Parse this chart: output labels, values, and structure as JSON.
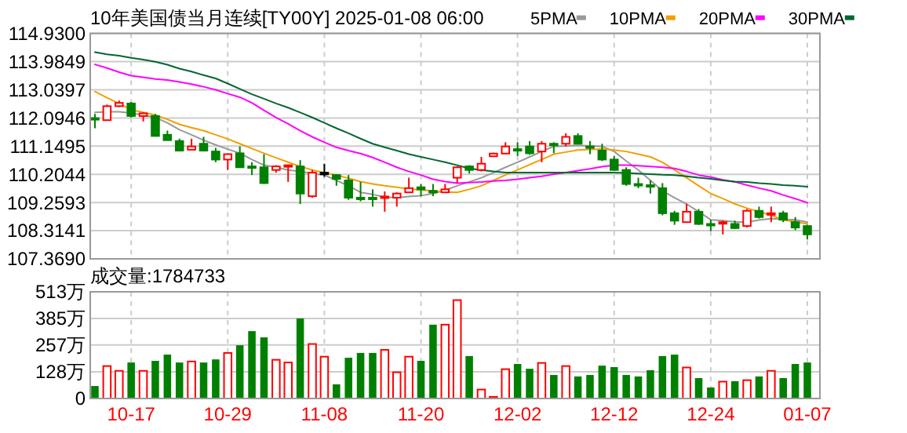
{
  "chart_data": [
    {
      "type": "candlestick",
      "title": "10年美国债当月连续[TY00Y] 2025-01-08 06:00",
      "categories": [
        null,
        null,
        null,
        null,
        null,
        null,
        null,
        null,
        null,
        null,
        null,
        null,
        null,
        null,
        null,
        null,
        null,
        null,
        null,
        null,
        null,
        null,
        null,
        null,
        null,
        null,
        null,
        null,
        null,
        null,
        null,
        null,
        null,
        null,
        null,
        null,
        null,
        null,
        null,
        null,
        null,
        null,
        null,
        null,
        null,
        null,
        null,
        null,
        null,
        null,
        null,
        null,
        null,
        null,
        null,
        null,
        null,
        null,
        null,
        null
      ],
      "ohlc": [
        [
          112.09,
          112.23,
          111.75,
          112.04
        ],
        [
          112.02,
          112.54,
          112.02,
          112.49
        ],
        [
          112.49,
          112.68,
          112.46,
          112.6
        ],
        [
          112.58,
          112.63,
          112.11,
          112.16
        ],
        [
          112.16,
          112.28,
          111.98,
          112.25
        ],
        [
          112.16,
          112.23,
          111.49,
          111.49
        ],
        [
          111.53,
          111.67,
          111.35,
          111.35
        ],
        [
          111.32,
          111.4,
          110.97,
          111.0
        ],
        [
          111.03,
          111.4,
          111.03,
          111.14
        ],
        [
          111.23,
          111.46,
          110.97,
          111.0
        ],
        [
          110.97,
          111.09,
          110.61,
          110.7
        ],
        [
          110.7,
          110.91,
          110.35,
          110.88
        ],
        [
          110.91,
          111.14,
          110.44,
          110.44
        ],
        [
          110.47,
          110.61,
          110.18,
          110.44
        ],
        [
          110.44,
          110.88,
          109.88,
          109.91
        ],
        [
          110.35,
          110.51,
          110.26,
          110.47
        ],
        [
          110.47,
          110.51,
          109.95,
          110.51
        ],
        [
          110.47,
          110.68,
          109.21,
          109.56
        ],
        [
          109.47,
          110.35,
          109.42,
          110.26
        ],
        [
          110.26,
          110.56,
          110.12,
          110.26
        ],
        [
          110.18,
          110.21,
          109.82,
          110.05
        ],
        [
          110.0,
          110.18,
          109.35,
          109.42
        ],
        [
          109.42,
          109.95,
          109.3,
          109.39
        ],
        [
          109.42,
          109.7,
          109.12,
          109.39
        ],
        [
          109.42,
          109.63,
          108.95,
          109.46
        ],
        [
          109.42,
          109.6,
          109.12,
          109.56
        ],
        [
          109.6,
          110.09,
          109.6,
          109.74
        ],
        [
          109.77,
          109.88,
          109.47,
          109.7
        ],
        [
          109.65,
          109.88,
          109.47,
          109.61
        ],
        [
          109.6,
          109.88,
          109.6,
          109.7
        ],
        [
          110.09,
          110.47,
          109.91,
          110.44
        ],
        [
          110.47,
          110.51,
          110.23,
          110.35
        ],
        [
          110.35,
          110.79,
          110.3,
          110.56
        ],
        [
          110.81,
          110.93,
          110.79,
          110.9
        ],
        [
          110.9,
          111.28,
          110.9,
          111.14
        ],
        [
          111.05,
          111.28,
          110.82,
          111.02
        ],
        [
          111.14,
          111.32,
          110.86,
          110.91
        ],
        [
          110.97,
          111.32,
          110.61,
          111.23
        ],
        [
          111.23,
          111.28,
          110.91,
          111.19
        ],
        [
          111.23,
          111.58,
          111.14,
          111.46
        ],
        [
          111.49,
          111.58,
          111.23,
          111.23
        ],
        [
          111.14,
          111.32,
          110.88,
          111.11
        ],
        [
          111.0,
          111.23,
          110.65,
          110.7
        ],
        [
          110.7,
          110.82,
          110.32,
          110.35
        ],
        [
          110.35,
          110.44,
          109.82,
          109.88
        ],
        [
          109.88,
          110.09,
          109.74,
          109.84
        ],
        [
          109.84,
          110.0,
          109.56,
          109.81
        ],
        [
          109.74,
          109.91,
          108.83,
          108.9
        ],
        [
          108.9,
          108.98,
          108.51,
          108.65
        ],
        [
          108.6,
          109.21,
          108.6,
          108.95
        ],
        [
          108.95,
          109.04,
          108.51,
          108.54
        ],
        [
          108.54,
          108.68,
          108.3,
          108.51
        ],
        [
          108.56,
          108.65,
          108.19,
          108.6
        ],
        [
          108.54,
          108.65,
          108.37,
          108.4
        ],
        [
          108.47,
          109.04,
          108.42,
          108.98
        ],
        [
          108.98,
          109.12,
          108.72,
          108.77
        ],
        [
          108.86,
          109.12,
          108.6,
          108.9
        ],
        [
          108.9,
          108.98,
          108.6,
          108.68
        ],
        [
          108.6,
          108.77,
          108.33,
          108.42
        ],
        [
          108.47,
          108.51,
          108.02,
          108.19
        ]
      ],
      "colors": [
        "#008000",
        "#ff0000",
        "#ff0000",
        "#008000",
        "#ff0000",
        "#008000",
        "#008000",
        "#008000",
        "#ff0000",
        "#008000",
        "#008000",
        "#ff0000",
        "#008000",
        "#008000",
        "#008000",
        "#ff0000",
        "#ff0000",
        "#008000",
        "#ff0000",
        "#000000",
        "#008000",
        "#008000",
        "#008000",
        "#008000",
        "#ff0000",
        "#ff0000",
        "#ff0000",
        "#008000",
        "#008000",
        "#ff0000",
        "#ff0000",
        "#008000",
        "#ff0000",
        "#ff0000",
        "#ff0000",
        "#008000",
        "#008000",
        "#ff0000",
        "#008000",
        "#ff0000",
        "#008000",
        "#008000",
        "#008000",
        "#008000",
        "#008000",
        "#008000",
        "#008000",
        "#008000",
        "#008000",
        "#ff0000",
        "#008000",
        "#008000",
        "#ff0000",
        "#008000",
        "#ff0000",
        "#008000",
        "#ff0000",
        "#008000",
        "#008000",
        "#008000"
      ],
      "series": [
        {
          "name": "5PMA",
          "type": "line",
          "color": "#999999",
          "values": [
            112.28,
            112.3,
            112.3,
            112.26,
            112.19,
            112.11,
            111.93,
            111.7,
            111.53,
            111.35,
            111.19,
            111.05,
            110.91,
            110.7,
            110.51,
            110.44,
            110.35,
            110.3,
            110.23,
            110.18,
            110.0,
            109.82,
            109.6,
            109.53,
            109.44,
            109.42,
            109.46,
            109.49,
            109.56,
            109.67,
            109.82,
            109.95,
            110.09,
            110.26,
            110.44,
            110.61,
            110.79,
            110.97,
            111.14,
            111.16,
            111.18,
            111.16,
            111.14,
            110.97,
            110.65,
            110.35,
            110.0,
            109.65,
            109.42,
            109.21,
            108.95,
            108.68,
            108.65,
            108.61,
            108.6,
            108.67,
            108.72,
            108.7,
            108.68,
            108.6
          ]
        },
        {
          "name": "10PMA",
          "type": "line",
          "color": "#f0a000",
          "values": [
            112.98,
            112.77,
            112.58,
            112.37,
            112.28,
            112.19,
            112.05,
            111.88,
            111.77,
            111.67,
            111.53,
            111.39,
            111.23,
            111.07,
            110.91,
            110.76,
            110.61,
            110.47,
            110.35,
            110.26,
            110.18,
            110.07,
            109.96,
            109.88,
            109.82,
            109.77,
            109.72,
            109.68,
            109.65,
            109.61,
            109.6,
            109.7,
            109.82,
            110.0,
            110.18,
            110.35,
            110.53,
            110.7,
            110.88,
            110.95,
            111.02,
            111.04,
            111.05,
            111.02,
            110.97,
            110.88,
            110.79,
            110.61,
            110.35,
            110.09,
            109.82,
            109.56,
            109.39,
            109.21,
            109.07,
            108.95,
            108.83,
            108.68,
            108.61,
            108.54
          ]
        },
        {
          "name": "20PMA",
          "type": "line",
          "color": "#ff00ff",
          "values": [
            113.89,
            113.77,
            113.63,
            113.51,
            113.46,
            113.4,
            113.37,
            113.3,
            113.23,
            113.14,
            113.04,
            112.91,
            112.79,
            112.6,
            112.35,
            112.11,
            111.9,
            111.67,
            111.46,
            111.28,
            111.11,
            111.0,
            110.9,
            110.77,
            110.61,
            110.44,
            110.3,
            110.18,
            110.04,
            109.96,
            109.91,
            109.93,
            109.95,
            109.98,
            110.0,
            110.04,
            110.09,
            110.14,
            110.21,
            110.26,
            110.33,
            110.39,
            110.46,
            110.51,
            110.51,
            110.49,
            110.47,
            110.44,
            110.4,
            110.3,
            110.18,
            110.11,
            110.02,
            109.95,
            109.84,
            109.74,
            109.65,
            109.51,
            109.39,
            109.25
          ]
        },
        {
          "name": "30PMA",
          "type": "line",
          "color": "#006633",
          "values": [
            114.3,
            114.23,
            114.18,
            114.11,
            114.05,
            113.98,
            113.88,
            113.75,
            113.65,
            113.53,
            113.42,
            113.25,
            113.07,
            112.89,
            112.74,
            112.58,
            112.44,
            112.28,
            112.11,
            111.93,
            111.75,
            111.58,
            111.4,
            111.23,
            111.11,
            111.0,
            110.88,
            110.79,
            110.7,
            110.61,
            110.51,
            110.4,
            110.35,
            110.3,
            110.26,
            110.26,
            110.26,
            110.26,
            110.26,
            110.26,
            110.26,
            110.26,
            110.26,
            110.26,
            110.25,
            110.23,
            110.21,
            110.19,
            110.18,
            110.14,
            110.09,
            110.05,
            110.0,
            109.96,
            109.95,
            109.91,
            109.88,
            109.84,
            109.82,
            109.79
          ]
        }
      ],
      "ylim": [
        107.369,
        114.93
      ],
      "yticks": [
        {
          "value": 114.93,
          "label": "114.9300"
        },
        113.9849,
        113.0397,
        112.0946,
        111.1495,
        110.2044,
        109.2593,
        108.3141,
        {
          "value": 107.369,
          "label": "107.3690"
        }
      ],
      "grid": true,
      "legend": "top right",
      "tick_labels": "y"
    },
    {
      "type": "bar",
      "title": "成交量:1784733",
      "categories": [
        null,
        null,
        null,
        "10-17",
        null,
        null,
        null,
        null,
        null,
        null,
        null,
        "10-29",
        null,
        null,
        null,
        null,
        null,
        null,
        null,
        "11-08",
        null,
        null,
        null,
        null,
        null,
        null,
        null,
        "11-20",
        null,
        null,
        null,
        null,
        null,
        null,
        null,
        "12-02",
        null,
        null,
        null,
        null,
        null,
        null,
        null,
        "12-12",
        null,
        null,
        null,
        null,
        null,
        null,
        null,
        "12-24",
        null,
        null,
        null,
        null,
        null,
        null,
        null,
        "01-07"
      ],
      "values": [
        60,
        156,
        133,
        173,
        133,
        181,
        211,
        173,
        178,
        173,
        188,
        219,
        256,
        324,
        294,
        186,
        173,
        385,
        262,
        201,
        68,
        196,
        219,
        219,
        234,
        126,
        201,
        181,
        355,
        355,
        473,
        204,
        43,
        8,
        141,
        166,
        143,
        171,
        113,
        156,
        106,
        113,
        158,
        151,
        113,
        106,
        136,
        204,
        211,
        149,
        98,
        53,
        81,
        83,
        88,
        106,
        133,
        98,
        166,
        173
      ],
      "colors": [
        "#008000",
        "#ff0000",
        "#ff0000",
        "#008000",
        "#ff0000",
        "#008000",
        "#008000",
        "#008000",
        "#ff0000",
        "#008000",
        "#008000",
        "#ff0000",
        "#008000",
        "#008000",
        "#008000",
        "#ff0000",
        "#ff0000",
        "#008000",
        "#ff0000",
        "#ff0000",
        "#008000",
        "#008000",
        "#008000",
        "#008000",
        "#ff0000",
        "#ff0000",
        "#ff0000",
        "#008000",
        "#008000",
        "#ff0000",
        "#ff0000",
        "#008000",
        "#ff0000",
        "#ff0000",
        "#ff0000",
        "#008000",
        "#008000",
        "#ff0000",
        "#008000",
        "#ff0000",
        "#008000",
        "#008000",
        "#008000",
        "#008000",
        "#008000",
        "#008000",
        "#008000",
        "#008000",
        "#008000",
        "#ff0000",
        "#008000",
        "#008000",
        "#ff0000",
        "#008000",
        "#ff0000",
        "#008000",
        "#ff0000",
        "#008000",
        "#008000",
        "#008000"
      ],
      "ylim": [
        0,
        513
      ],
      "yticks": [
        0,
        {
          "value": 128,
          "label": "128万"
        },
        {
          "value": 257,
          "label": "257万"
        },
        {
          "value": 385,
          "label": "385万"
        },
        {
          "value": 513,
          "label": "513万"
        }
      ],
      "grid": true
    }
  ]
}
